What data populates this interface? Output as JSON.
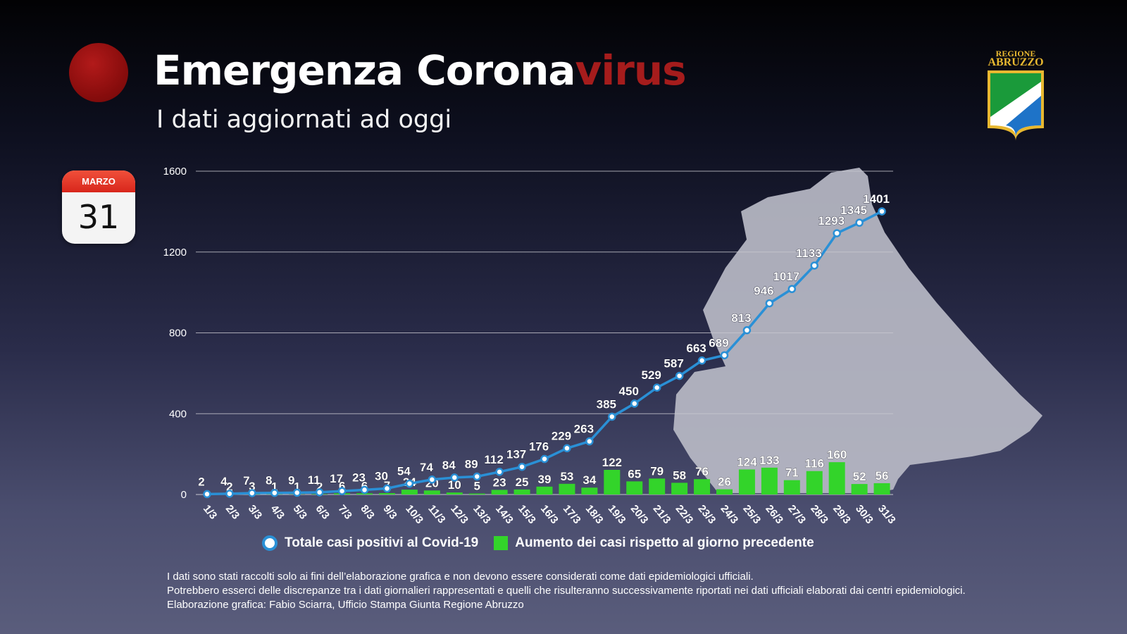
{
  "header": {
    "title_main": "Emergenza Corona",
    "title_accent": "virus",
    "subtitle": "I dati aggiornati ad oggi"
  },
  "calendar": {
    "month": "MARZO",
    "day": "31"
  },
  "logo": {
    "line1": "REGIONE",
    "line2": "ABRUZZO"
  },
  "colors": {
    "line": "#2a90d6",
    "bar": "#33d42a",
    "title_accent": "#a51c1c",
    "grid": "#c8c8d0",
    "map": "#b8bac6"
  },
  "chart_data": {
    "type": "bar",
    "categories": [
      "1/3",
      "2/3",
      "3/3",
      "4/3",
      "5/3",
      "6/3",
      "7/3",
      "8/3",
      "9/3",
      "10/3",
      "11/3",
      "12/3",
      "13/3",
      "14/3",
      "15/3",
      "16/3",
      "17/3",
      "18/3",
      "19/3",
      "20/3",
      "21/3",
      "22/3",
      "23/3",
      "24/3",
      "25/3",
      "26/3",
      "27/3",
      "28/3",
      "29/3",
      "30/3",
      "31/3"
    ],
    "series": [
      {
        "name": "Totale casi positivi al Covid-19",
        "type": "line",
        "values": [
          2,
          4,
          7,
          8,
          9,
          11,
          17,
          23,
          30,
          54,
          74,
          84,
          89,
          112,
          137,
          176,
          229,
          263,
          385,
          450,
          529,
          587,
          663,
          689,
          813,
          946,
          1017,
          1133,
          1293,
          1345,
          1401
        ]
      },
      {
        "name": "Aumento dei casi rispetto al giorno precedente",
        "type": "bar",
        "values": [
          null,
          2,
          3,
          1,
          1,
          2,
          6,
          6,
          7,
          24,
          20,
          10,
          5,
          23,
          25,
          39,
          53,
          34,
          122,
          65,
          79,
          58,
          76,
          26,
          124,
          133,
          71,
          116,
          160,
          52,
          56
        ]
      }
    ],
    "yticks": [
      0,
      400,
      800,
      1200,
      1600
    ],
    "ylim": [
      0,
      1600
    ],
    "grid": true,
    "legend_position": "bottom"
  },
  "footnotes": [
    "I dati sono stati raccolti solo ai fini dell’elaborazione grafica e non devono essere considerati come dati epidemiologici ufficiali.",
    "Potrebbero esserci delle discrepanze tra i dati giornalieri rappresentati e quelli che risulteranno successivamente riportati nei dati ufficiali elaborati dai centri epidemiologici.",
    "Elaborazione grafica: Fabio Sciarra, Ufficio Stampa Giunta Regione Abruzzo"
  ]
}
